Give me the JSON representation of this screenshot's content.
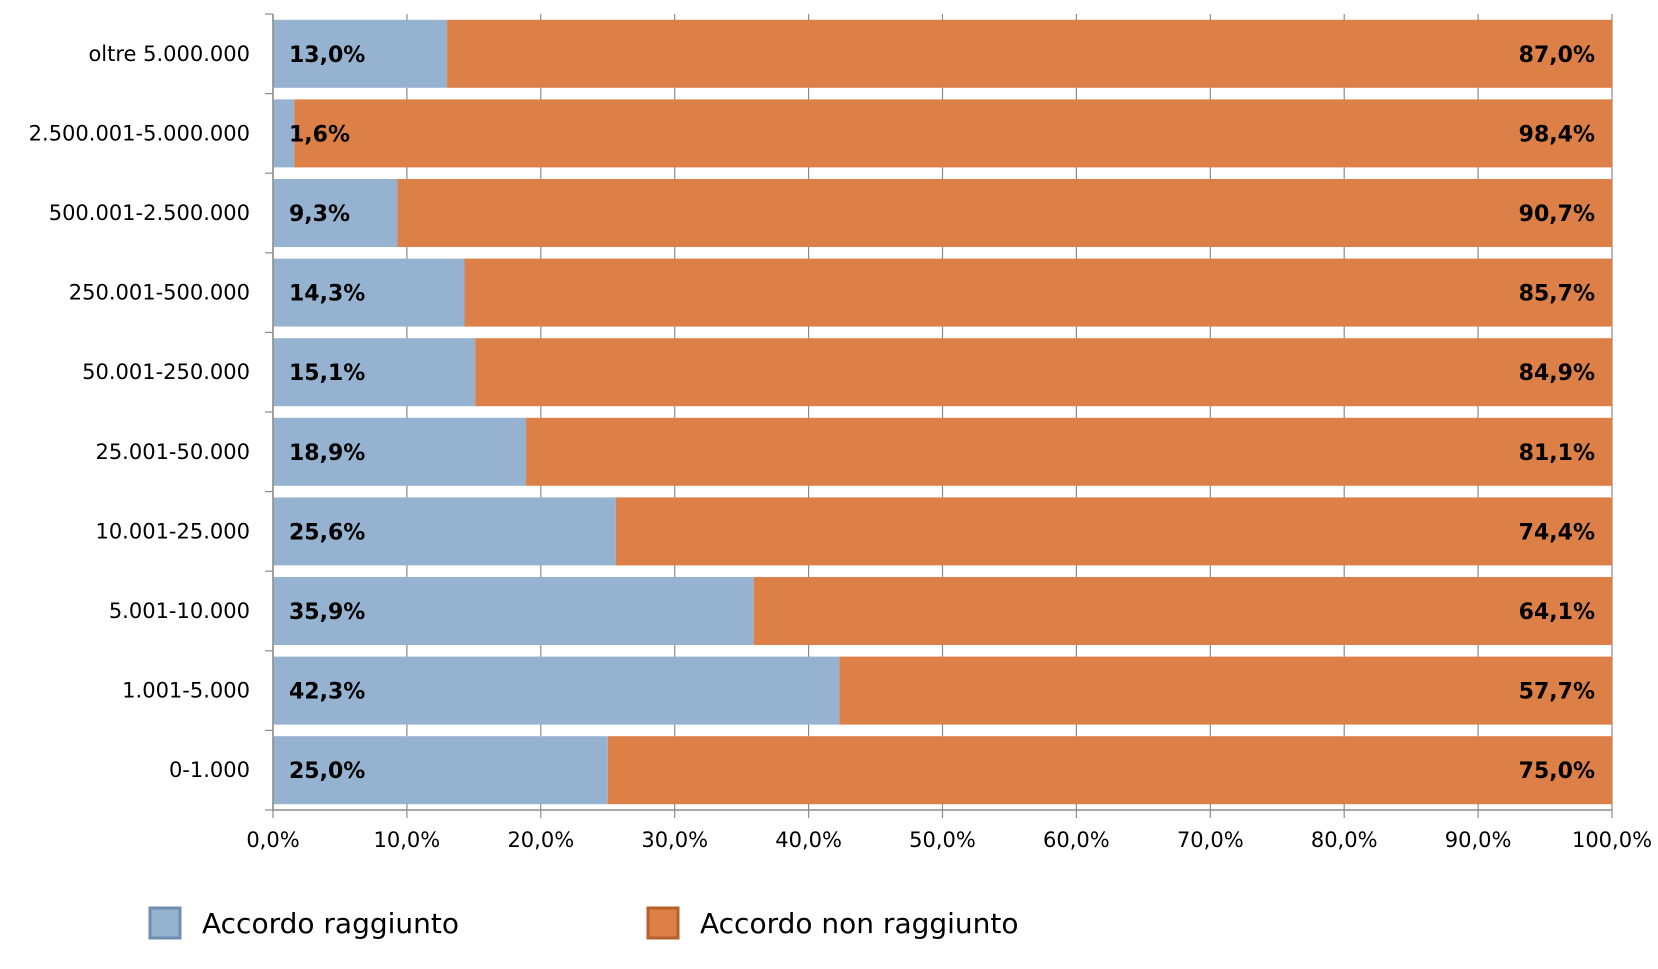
{
  "chart_data": {
    "type": "bar",
    "orientation": "horizontal",
    "stacked": "percent",
    "categories": [
      "oltre 5.000.000",
      "2.500.001-5.000.000",
      "500.001-2.500.000",
      "250.001-500.000",
      "50.001-250.000",
      "25.001-50.000",
      "10.001-25.000",
      "5.001-10.000",
      "1.001-5.000",
      "0-1.000"
    ],
    "series": [
      {
        "name": "Accordo raggiunto",
        "color": "#95b3d1",
        "values": [
          13.0,
          1.6,
          9.3,
          14.3,
          15.1,
          18.9,
          25.6,
          35.9,
          42.3,
          25.0
        ],
        "labels": [
          "13,0%",
          "1,6%",
          "9,3%",
          "14,3%",
          "15,1%",
          "18,9%",
          "25,6%",
          "35,9%",
          "42,3%",
          "25,0%"
        ]
      },
      {
        "name": "Accordo non raggiunto",
        "color": "#dd8048",
        "values": [
          87.0,
          98.4,
          90.7,
          85.7,
          84.9,
          81.1,
          74.4,
          64.1,
          57.7,
          75.0
        ],
        "labels": [
          "87,0%",
          "98,4%",
          "90,7%",
          "85,7%",
          "84,9%",
          "81,1%",
          "74,4%",
          "64,1%",
          "57,7%",
          "75,0%"
        ]
      }
    ],
    "xlim": [
      0,
      100
    ],
    "xticks": [
      "0,0%",
      "10,0%",
      "20,0%",
      "30,0%",
      "40,0%",
      "50,0%",
      "60,0%",
      "70,0%",
      "80,0%",
      "90,0%",
      "100,0%"
    ],
    "title": "",
    "xlabel": "",
    "ylabel": "",
    "grid": "vertical",
    "legend": "bottom"
  }
}
